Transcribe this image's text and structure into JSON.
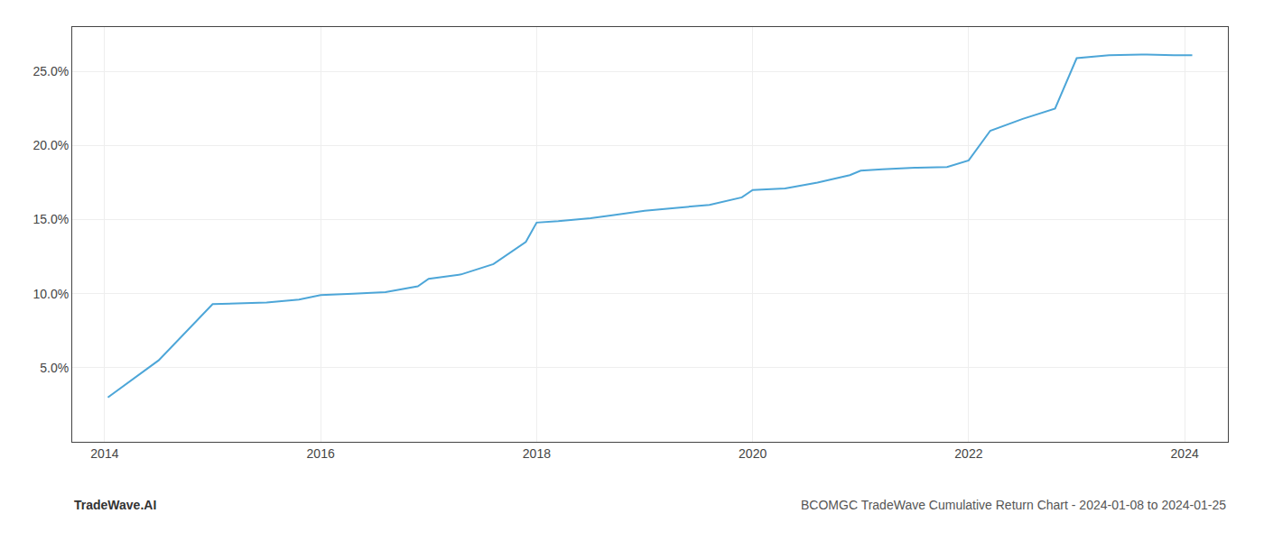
{
  "chart_data": {
    "type": "line",
    "x": [
      2014.03,
      2014.5,
      2015.0,
      2015.2,
      2015.5,
      2015.8,
      2016.0,
      2016.3,
      2016.6,
      2016.9,
      2017.0,
      2017.3,
      2017.6,
      2017.9,
      2018.0,
      2018.2,
      2018.5,
      2018.7,
      2019.0,
      2019.3,
      2019.6,
      2019.9,
      2020.0,
      2020.3,
      2020.6,
      2020.9,
      2021.0,
      2021.2,
      2021.5,
      2021.8,
      2022.0,
      2022.2,
      2022.5,
      2022.8,
      2023.0,
      2023.3,
      2023.6,
      2023.9,
      2024.0,
      2024.07
    ],
    "values": [
      3.0,
      5.5,
      9.3,
      9.35,
      9.4,
      9.6,
      9.9,
      10.0,
      10.1,
      10.5,
      11.0,
      11.3,
      12.0,
      13.5,
      14.8,
      14.9,
      15.1,
      15.3,
      15.6,
      15.8,
      16.0,
      16.5,
      17.0,
      17.1,
      17.5,
      18.0,
      18.3,
      18.4,
      18.5,
      18.55,
      19.0,
      21.0,
      21.8,
      22.5,
      25.9,
      26.1,
      26.15,
      26.1,
      26.1,
      26.1
    ],
    "color": "#4da6d8",
    "xlim": [
      2013.7,
      2024.4
    ],
    "ylim": [
      0,
      28
    ],
    "xticks": [
      2014,
      2016,
      2018,
      2020,
      2022,
      2024
    ],
    "yticks": [
      {
        "value": 5.0,
        "label": "5.0%"
      },
      {
        "value": 10.0,
        "label": "10.0%"
      },
      {
        "value": 15.0,
        "label": "15.0%"
      },
      {
        "value": 20.0,
        "label": "20.0%"
      },
      {
        "value": 25.0,
        "label": "25.0%"
      }
    ],
    "grid": true,
    "annotations": [
      "TradeWave.AI",
      "BCOMGC TradeWave Cumulative Return Chart - 2024-01-08 to 2024-01-25"
    ]
  }
}
